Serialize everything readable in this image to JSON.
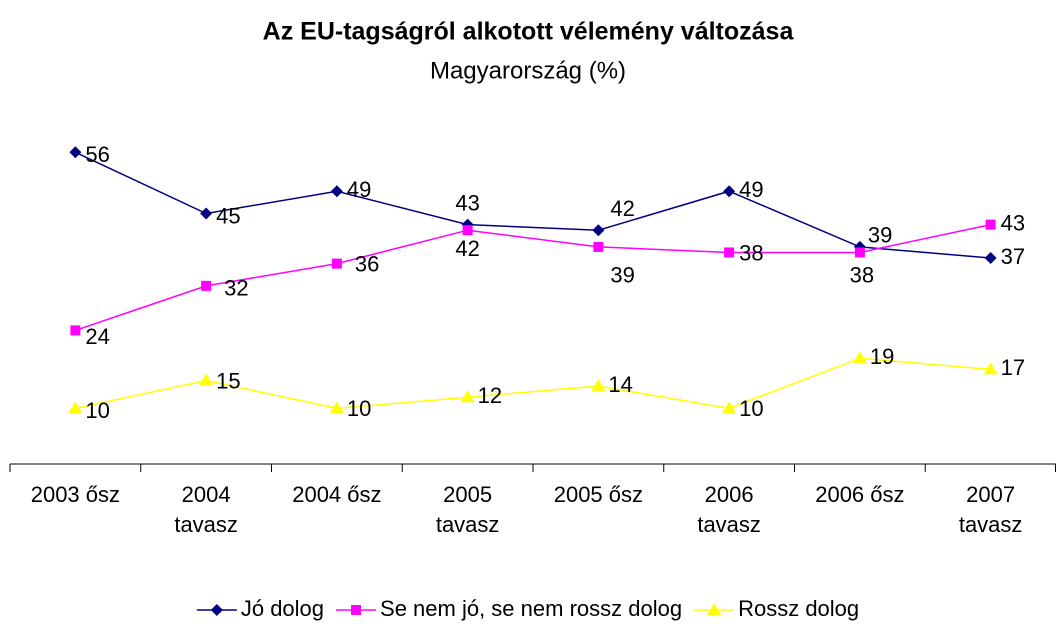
{
  "chart_data": {
    "type": "line",
    "title": "Az EU-tagságról alkotott vélemény változása",
    "subtitle": "Magyarország (%)",
    "categories": [
      "2003 ősz",
      "2004 tavasz",
      "2004 ősz",
      "2005 tavasz",
      "2005 ősz",
      "2006 tavasz",
      "2006 ősz",
      "2007 tavasz"
    ],
    "series": [
      {
        "name": "Jó dolog",
        "color": "#000080",
        "marker": "diamond",
        "values": [
          56,
          45,
          49,
          43,
          42,
          49,
          39,
          37
        ]
      },
      {
        "name": "Se nem jó, se nem rossz dolog",
        "color": "#ff00ff",
        "marker": "square",
        "values": [
          24,
          32,
          36,
          42,
          39,
          38,
          38,
          43
        ]
      },
      {
        "name": "Rossz dolog",
        "color": "#ffff00",
        "marker": "triangle",
        "values": [
          10,
          15,
          10,
          12,
          14,
          10,
          19,
          17
        ]
      }
    ],
    "ylim": [
      0,
      60
    ],
    "legend": "bottom"
  }
}
